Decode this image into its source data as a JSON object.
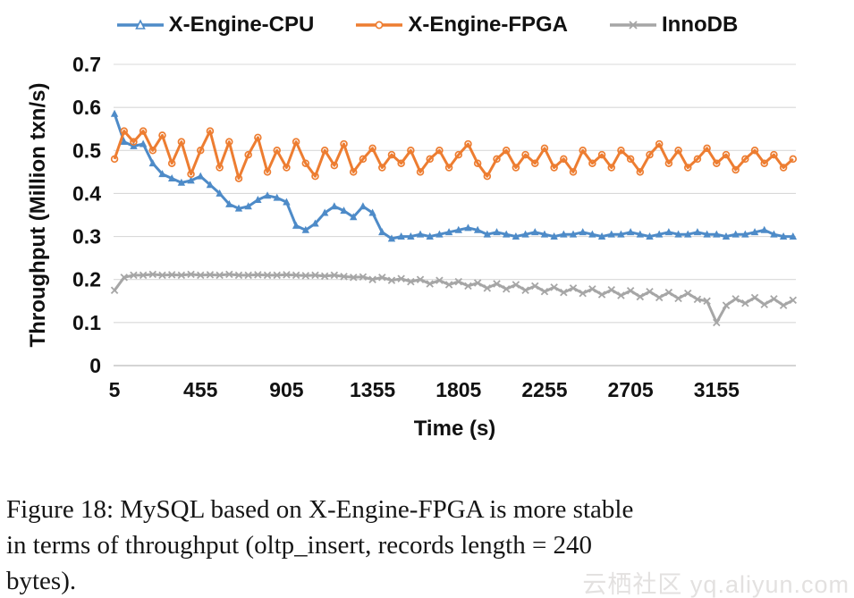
{
  "figure": {
    "caption_lines": [
      "Figure 18: MySQL based on X-Engine-FPGA is more stable",
      "in terms of throughput (oltp_insert, records length = 240",
      "bytes)."
    ],
    "watermark": "云栖社区 yq.aliyun.com",
    "background": "#ffffff"
  },
  "chart_data": {
    "type": "line",
    "title": "",
    "xlabel": "Time (s)",
    "ylabel": "Throughput (Million txn/s)",
    "xlim": [
      0,
      3570
    ],
    "ylim": [
      0,
      0.7
    ],
    "grid": "horizontal",
    "gridline_color": "#d9d9d9",
    "axis_line_color": "#c6c6c6",
    "legend_position": "top",
    "x_ticks": [
      {
        "v": 5,
        "label": "5"
      },
      {
        "v": 455,
        "label": "455"
      },
      {
        "v": 905,
        "label": "905"
      },
      {
        "v": 1355,
        "label": "1355"
      },
      {
        "v": 1805,
        "label": "1805"
      },
      {
        "v": 2255,
        "label": "2255"
      },
      {
        "v": 2705,
        "label": "2705"
      },
      {
        "v": 3155,
        "label": "3155"
      }
    ],
    "y_ticks": [
      {
        "v": 0,
        "label": "0"
      },
      {
        "v": 0.1,
        "label": "0.1"
      },
      {
        "v": 0.2,
        "label": "0.2"
      },
      {
        "v": 0.3,
        "label": "0.3"
      },
      {
        "v": 0.4,
        "label": "0.4"
      },
      {
        "v": 0.5,
        "label": "0.5"
      },
      {
        "v": 0.6,
        "label": "0.6"
      },
      {
        "v": 0.7,
        "label": "0.7"
      }
    ],
    "x_start": 5,
    "x_step": 50,
    "series": [
      {
        "name": "X-Engine-CPU",
        "color": "#4e8bc8",
        "marker": "triangle",
        "values": [
          0.585,
          0.52,
          0.51,
          0.515,
          0.47,
          0.445,
          0.435,
          0.425,
          0.43,
          0.44,
          0.42,
          0.4,
          0.375,
          0.365,
          0.37,
          0.385,
          0.395,
          0.39,
          0.38,
          0.325,
          0.315,
          0.33,
          0.355,
          0.37,
          0.36,
          0.345,
          0.37,
          0.355,
          0.31,
          0.295,
          0.3,
          0.3,
          0.305,
          0.3,
          0.305,
          0.31,
          0.315,
          0.32,
          0.315,
          0.305,
          0.31,
          0.305,
          0.3,
          0.305,
          0.31,
          0.305,
          0.3,
          0.305,
          0.305,
          0.31,
          0.305,
          0.3,
          0.305,
          0.305,
          0.31,
          0.305,
          0.3,
          0.305,
          0.31,
          0.305,
          0.305,
          0.31,
          0.305,
          0.305,
          0.3,
          0.305,
          0.305,
          0.31,
          0.315,
          0.305,
          0.3,
          0.3
        ]
      },
      {
        "name": "X-Engine-FPGA",
        "color": "#ed7d31",
        "marker": "circle",
        "values": [
          0.48,
          0.545,
          0.52,
          0.545,
          0.5,
          0.535,
          0.47,
          0.52,
          0.445,
          0.5,
          0.545,
          0.46,
          0.52,
          0.435,
          0.49,
          0.53,
          0.45,
          0.5,
          0.46,
          0.52,
          0.47,
          0.44,
          0.5,
          0.465,
          0.515,
          0.45,
          0.48,
          0.505,
          0.46,
          0.49,
          0.47,
          0.5,
          0.45,
          0.48,
          0.5,
          0.46,
          0.49,
          0.515,
          0.47,
          0.44,
          0.48,
          0.5,
          0.46,
          0.49,
          0.47,
          0.505,
          0.46,
          0.48,
          0.45,
          0.5,
          0.47,
          0.49,
          0.46,
          0.5,
          0.48,
          0.45,
          0.49,
          0.515,
          0.47,
          0.5,
          0.46,
          0.48,
          0.505,
          0.47,
          0.49,
          0.455,
          0.48,
          0.5,
          0.47,
          0.49,
          0.46,
          0.48
        ]
      },
      {
        "name": "InnoDB",
        "color": "#a6a6a6",
        "marker": "x",
        "values": [
          0.175,
          0.205,
          0.21,
          0.21,
          0.212,
          0.21,
          0.211,
          0.21,
          0.212,
          0.21,
          0.211,
          0.21,
          0.212,
          0.21,
          0.21,
          0.211,
          0.21,
          0.21,
          0.211,
          0.21,
          0.209,
          0.21,
          0.208,
          0.21,
          0.207,
          0.205,
          0.206,
          0.2,
          0.205,
          0.198,
          0.202,
          0.195,
          0.2,
          0.19,
          0.198,
          0.188,
          0.195,
          0.185,
          0.192,
          0.18,
          0.19,
          0.178,
          0.188,
          0.175,
          0.185,
          0.172,
          0.182,
          0.17,
          0.18,
          0.168,
          0.178,
          0.165,
          0.176,
          0.163,
          0.174,
          0.16,
          0.172,
          0.158,
          0.17,
          0.156,
          0.168,
          0.154,
          0.15,
          0.1,
          0.14,
          0.155,
          0.145,
          0.158,
          0.142,
          0.155,
          0.14,
          0.152
        ]
      }
    ]
  }
}
